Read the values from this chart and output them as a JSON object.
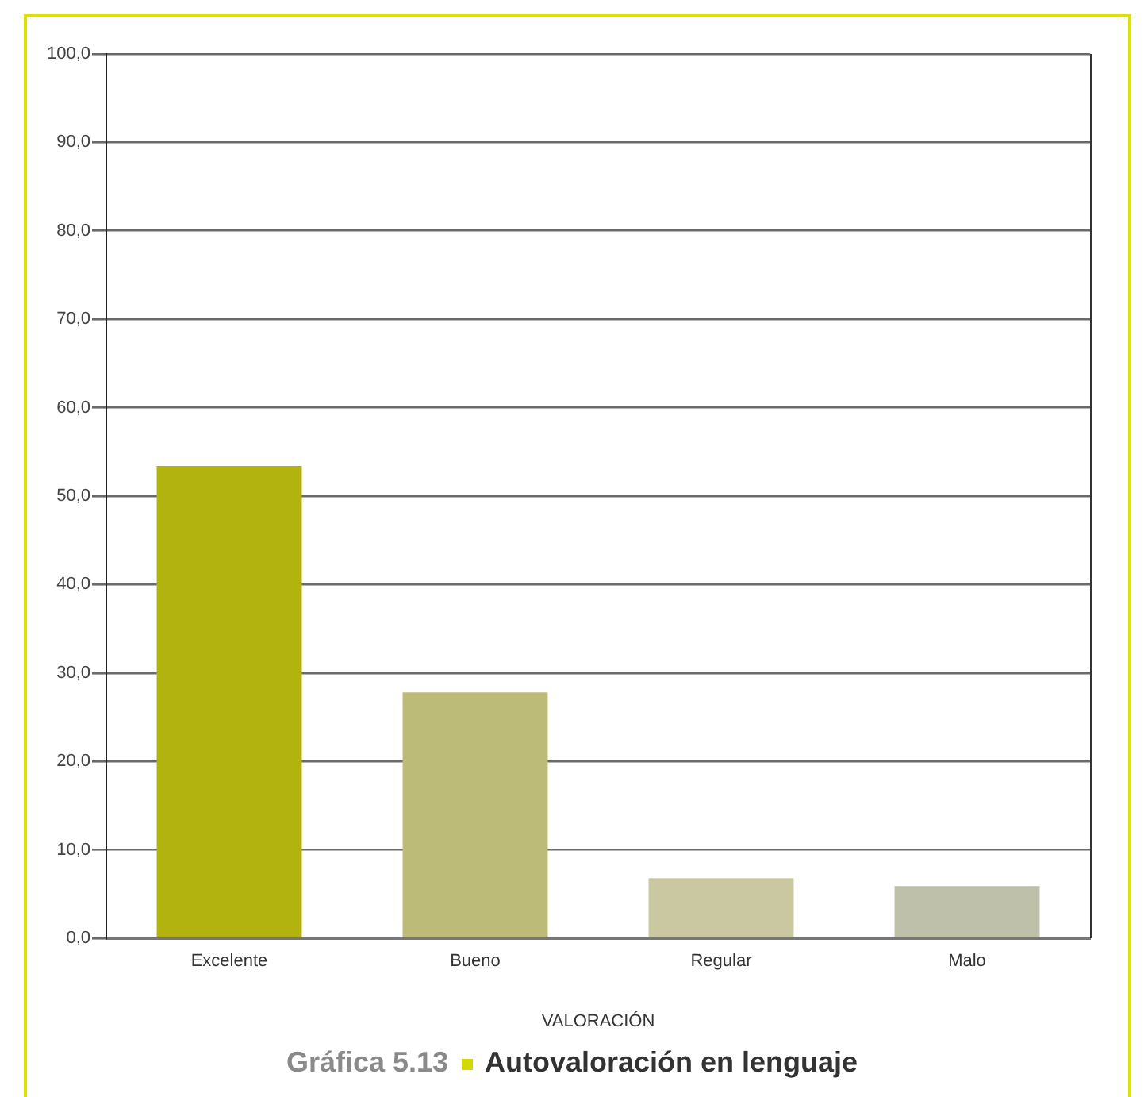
{
  "chart_data": {
    "type": "bar",
    "title": "Gráfica 5.13",
    "subtitle": "Autovaloración en lenguaje",
    "xlabel": "VALORACIÓN",
    "categories": [
      "Excelente",
      "Bueno",
      "Regular",
      "Malo"
    ],
    "values": [
      53.4,
      27.8,
      6.8,
      5.9
    ],
    "colors": [
      "#b3b310",
      "#bdbb78",
      "#c9c8a0",
      "#bfc0aa"
    ],
    "ylim": [
      0,
      100
    ],
    "yticks": [
      {
        "value": 0,
        "label": "0,0"
      },
      {
        "value": 10,
        "label": "10,0"
      },
      {
        "value": 20,
        "label": "20,0"
      },
      {
        "value": 30,
        "label": "30,0"
      },
      {
        "value": 40,
        "label": "40,0"
      },
      {
        "value": 50,
        "label": "50,0"
      },
      {
        "value": 60,
        "label": "60,0"
      },
      {
        "value": 70,
        "label": "70,0"
      },
      {
        "value": 80,
        "label": "80,0"
      },
      {
        "value": 90,
        "label": "90,0"
      },
      {
        "value": 100,
        "label": "100,0"
      }
    ],
    "grid": "y"
  }
}
